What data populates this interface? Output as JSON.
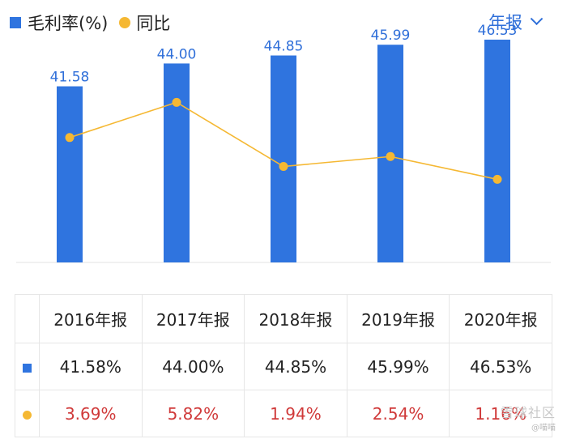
{
  "legend": {
    "bar_label": "毛利率(%)",
    "line_label": "同比"
  },
  "period_selector": {
    "label": "年报"
  },
  "chart_data": {
    "type": "bar",
    "categories": [
      "2016年报",
      "2017年报",
      "2018年报",
      "2019年报",
      "2020年报"
    ],
    "series": [
      {
        "name": "毛利率(%)",
        "type": "bar",
        "color": "#2f74df",
        "values": [
          41.58,
          44.0,
          44.85,
          45.99,
          46.53
        ],
        "labels": [
          "41.58",
          "44.00",
          "44.85",
          "45.99",
          "46.53"
        ]
      },
      {
        "name": "同比",
        "type": "line",
        "color": "#f5b833",
        "values": [
          3.69,
          5.82,
          1.94,
          2.54,
          1.16
        ]
      }
    ],
    "grid": false,
    "legend_position": "top-left"
  },
  "table": {
    "headers": [
      "2016年报",
      "2017年报",
      "2018年报",
      "2019年报",
      "2020年报"
    ],
    "rows": [
      {
        "key": "bar",
        "values": [
          "41.58%",
          "44.00%",
          "44.85%",
          "45.99%",
          "46.53%"
        ]
      },
      {
        "key": "line",
        "values": [
          "3.69%",
          "5.82%",
          "1.94%",
          "2.54%",
          "1.16%"
        ]
      }
    ]
  },
  "watermark": {
    "text": "雪球社区",
    "sub": "@喵喵"
  }
}
